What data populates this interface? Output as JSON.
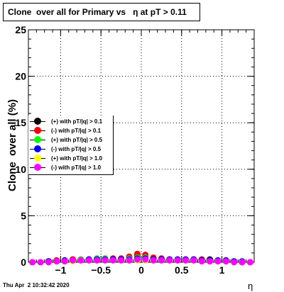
{
  "title": "Clone  over all for Primary vs   η at pT > 0.11",
  "footer": "Thu Apr  2 10:32:42 2020",
  "chart_data": {
    "type": "scatter",
    "xlabel": "η",
    "ylabel": "Clone  over all (%)",
    "xlim": [
      -1.4,
      1.4
    ],
    "ylim": [
      0,
      25
    ],
    "xticks": [
      -1,
      -0.5,
      0,
      0.5,
      1
    ],
    "xtick_labels": [
      "−1",
      "−0.5",
      "0",
      "0.5",
      "1"
    ],
    "yticks": [
      0,
      5,
      10,
      15,
      20,
      25
    ],
    "ytick_labels": [
      "0",
      "5",
      "10",
      "15",
      "20",
      "25"
    ],
    "grid": true,
    "legend_placement": "left-middle",
    "x": [
      -1.35,
      -1.25,
      -1.15,
      -1.05,
      -0.95,
      -0.85,
      -0.75,
      -0.65,
      -0.55,
      -0.45,
      -0.35,
      -0.25,
      -0.15,
      -0.05,
      0.05,
      0.15,
      0.25,
      0.35,
      0.45,
      0.55,
      0.65,
      0.75,
      0.85,
      0.95,
      1.05,
      1.15,
      1.25,
      1.35
    ],
    "series": [
      {
        "name": "(+) with pT/|q| > 0.1",
        "color": "#000000",
        "values": [
          0.0,
          0.0,
          0.1,
          0.2,
          0.2,
          0.3,
          0.3,
          0.3,
          0.4,
          0.4,
          0.4,
          0.4,
          0.5,
          0.7,
          0.6,
          0.4,
          0.4,
          0.3,
          0.3,
          0.3,
          0.3,
          0.3,
          0.3,
          0.2,
          0.2,
          0.1,
          0.0,
          0.0
        ]
      },
      {
        "name": "(-) with pT/|q| > 0.1",
        "color": "#ff0000",
        "values": [
          0.0,
          0.0,
          0.1,
          0.2,
          0.2,
          0.3,
          0.3,
          0.3,
          0.3,
          0.4,
          0.4,
          0.4,
          0.6,
          0.9,
          0.8,
          0.5,
          0.4,
          0.3,
          0.3,
          0.3,
          0.3,
          0.3,
          0.2,
          0.2,
          0.1,
          0.1,
          0.0,
          0.0
        ]
      },
      {
        "name": "(+) with pT/|q| > 0.5",
        "color": "#00ff00",
        "values": [
          0.0,
          0.0,
          0.1,
          0.1,
          0.2,
          0.2,
          0.3,
          0.3,
          0.4,
          0.4,
          0.3,
          0.3,
          0.4,
          0.5,
          0.5,
          0.3,
          0.3,
          0.3,
          0.3,
          0.3,
          0.2,
          0.2,
          0.2,
          0.2,
          0.1,
          0.1,
          0.0,
          0.0
        ]
      },
      {
        "name": "(-) with pT/|q| > 0.5",
        "color": "#0000ff",
        "values": [
          0.0,
          0.0,
          0.1,
          0.1,
          0.2,
          0.2,
          0.2,
          0.3,
          0.3,
          0.3,
          0.3,
          0.3,
          0.3,
          0.4,
          0.4,
          0.3,
          0.3,
          0.3,
          0.3,
          0.3,
          0.3,
          0.2,
          0.2,
          0.2,
          0.2,
          0.1,
          0.1,
          0.0
        ]
      },
      {
        "name": "(+) with pT/|q| > 1.0",
        "color": "#ffff00",
        "values": [
          0.0,
          0.0,
          0.0,
          0.1,
          0.1,
          0.1,
          0.2,
          0.2,
          0.2,
          0.2,
          0.2,
          0.2,
          0.2,
          0.2,
          0.2,
          0.2,
          0.2,
          0.2,
          0.2,
          0.2,
          0.2,
          0.1,
          0.1,
          0.1,
          0.1,
          0.0,
          0.0,
          0.0
        ]
      },
      {
        "name": "(-) with pT/|q| > 1.0",
        "color": "#ff00ff",
        "values": [
          0.0,
          0.0,
          0.0,
          0.1,
          0.1,
          0.2,
          0.2,
          0.2,
          0.2,
          0.2,
          0.2,
          0.2,
          0.2,
          0.3,
          0.3,
          0.2,
          0.2,
          0.2,
          0.2,
          0.2,
          0.2,
          0.1,
          0.1,
          0.1,
          0.1,
          0.0,
          0.0,
          0.0
        ]
      }
    ]
  }
}
